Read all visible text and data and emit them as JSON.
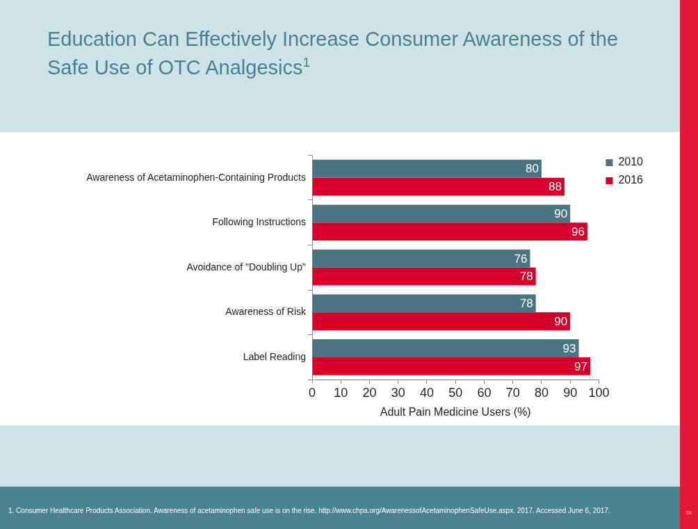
{
  "chart_data": {
    "type": "bar",
    "orientation": "horizontal",
    "title": "Education Can Effectively Increase Consumer Awareness of the Safe Use of OTC Analgesics$^{1}$",
    "xlabel": "Adult Pain Medicine Users (%)",
    "categories": [
      "Awareness of Acetaminophen-Containing Products",
      "Following Instructions",
      "Avoidance of \"Doubling Up\"",
      "Awareness of Risk",
      "Label Reading"
    ],
    "series": [
      {
        "name": "2010",
        "color": "#4a7482",
        "values": [
          80,
          90,
          76,
          78,
          93
        ]
      },
      {
        "name": "2016",
        "color": "#d6002a",
        "values": [
          88,
          96,
          78,
          90,
          97
        ]
      }
    ],
    "xlim": [
      0,
      100
    ],
    "xticks": [
      0,
      10,
      20,
      30,
      40,
      50,
      60,
      70,
      80,
      90,
      100
    ],
    "data_labels": true,
    "legend": "top right",
    "annotations": [
      "1. Consumer Healthcare Products Association. Awareness of acetaminophen safe use is on the rise. http://www.chpa.org/AwarenessofAcetaminophenSafeUse.aspx. 2017. Accessed June 6, 2017.",
      "58"
    ]
  }
}
